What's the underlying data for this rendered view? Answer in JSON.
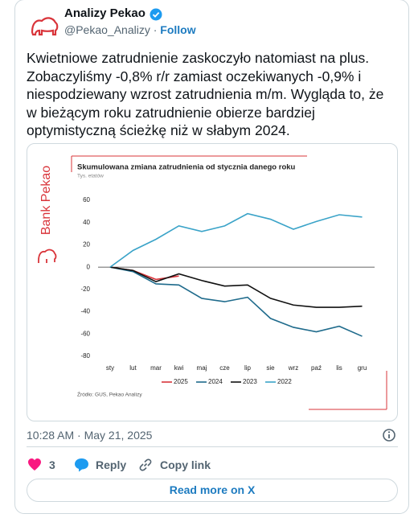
{
  "tweet": {
    "author": "Analizy Pekao",
    "handle": "@Pekao_Analizy",
    "separator": "·",
    "follow": "Follow",
    "text": [
      "Kwietniowe zatrudnienie zaskoczyło natomiast na plus.",
      "Zobaczyliśmy -0,8% r/r zamiast oczekiwanych -0,9% i",
      "niespodziewany wzrost zatrudnienia m/m. Wygląda to, że",
      "w bieżącym roku zatrudnienie obierze bardziej",
      "optymistyczną ścieżkę niż w słabym 2024."
    ],
    "timestamp": "10:28 AM · May 21, 2025",
    "likes": "3",
    "reply": "Reply",
    "copy_link": "Copy link",
    "read_more": "Read more on X"
  },
  "chart_data": {
    "type": "line",
    "logo_text": "Bank Pekao",
    "title": "Skumulowana zmiana zatrudnienia od stycznia danego roku",
    "subtitle": "Tys. etatów",
    "source": "Źródło: GUS, Pekao Analizy",
    "categories": [
      "sty",
      "lut",
      "mar",
      "kwi",
      "maj",
      "cze",
      "lip",
      "sie",
      "wrz",
      "paź",
      "lis",
      "gru"
    ],
    "series": [
      {
        "name": "2025",
        "color": "#d9343a",
        "values": [
          0,
          -3,
          -11,
          -8,
          null,
          null,
          null,
          null,
          null,
          null,
          null,
          null
        ]
      },
      {
        "name": "2024",
        "color": "#1f6b8c",
        "values": [
          0,
          -4,
          -15,
          -16,
          -28,
          -31,
          -27,
          -46,
          -54,
          -58,
          -53,
          -62
        ]
      },
      {
        "name": "2023",
        "color": "#111111",
        "values": [
          0,
          -3,
          -13,
          -6,
          -12,
          -17,
          -16,
          -28,
          -34,
          -36,
          -36,
          -35
        ]
      },
      {
        "name": "2022",
        "color": "#3aa3c8",
        "values": [
          0,
          15,
          25,
          37,
          32,
          37,
          48,
          43,
          34,
          41,
          47,
          45
        ]
      }
    ],
    "ylim": [
      -80,
      60
    ],
    "yticks": [
      -80,
      -60,
      -40,
      -20,
      0,
      20,
      40,
      60
    ],
    "grid": false
  }
}
